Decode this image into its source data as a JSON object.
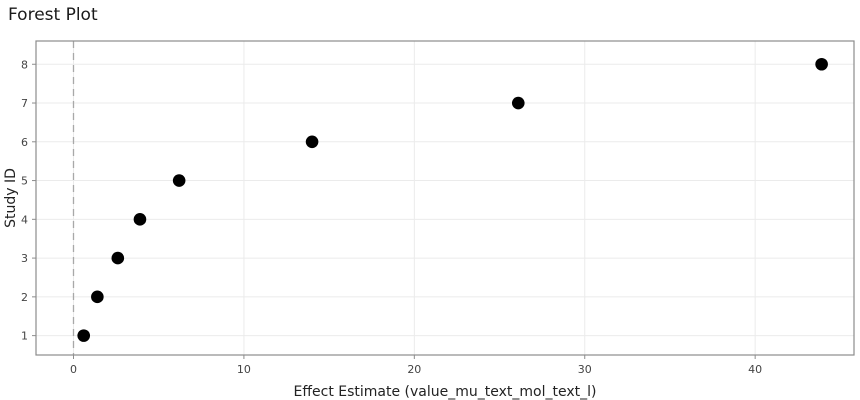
{
  "chart_data": {
    "type": "scatter",
    "title": "Forest Plot",
    "xlabel": "Effect Estimate (value_mu_text_mol_text_l)",
    "ylabel": "Study ID",
    "xlim": [
      -2.2,
      45.8
    ],
    "ylim": [
      0.5,
      8.6
    ],
    "x_ticks": [
      0,
      10,
      20,
      30,
      40
    ],
    "y_ticks": [
      1,
      2,
      3,
      4,
      5,
      6,
      7,
      8
    ],
    "reference_line_x": 0,
    "grid": true,
    "legend": "none",
    "point_color": "#000000",
    "points": [
      {
        "x": 0.6,
        "y": 1
      },
      {
        "x": 1.4,
        "y": 2
      },
      {
        "x": 2.6,
        "y": 3
      },
      {
        "x": 3.9,
        "y": 4
      },
      {
        "x": 6.2,
        "y": 5
      },
      {
        "x": 14.0,
        "y": 6
      },
      {
        "x": 26.1,
        "y": 7
      },
      {
        "x": 43.9,
        "y": 8
      }
    ]
  }
}
